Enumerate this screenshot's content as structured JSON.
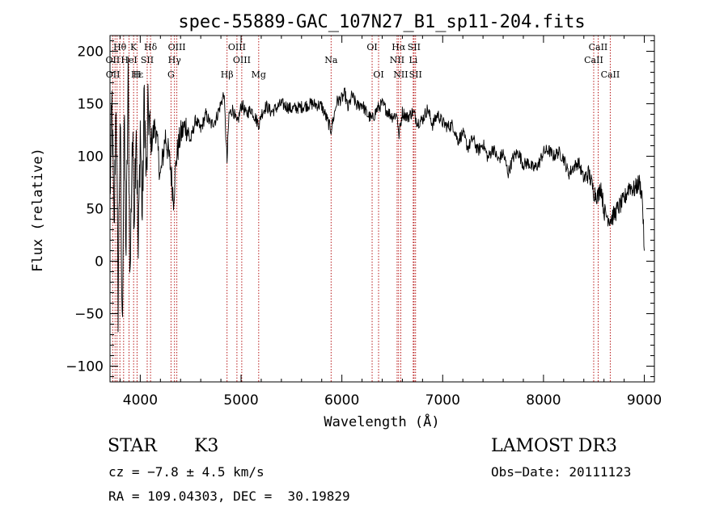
{
  "chart_data": {
    "type": "line",
    "title": "spec-55889-GAC_107N27_B1_sp11-204.fits",
    "xlabel": "Wavelength (Å)",
    "ylabel": "Flux (relative)",
    "xlim": [
      3700,
      9100
    ],
    "ylim": [
      -115,
      215
    ],
    "xticks": [
      4000,
      5000,
      6000,
      7000,
      8000,
      9000
    ],
    "yticks": [
      -100,
      -50,
      0,
      50,
      100,
      150,
      200
    ],
    "grid": false,
    "series": [
      {
        "name": "spectrum",
        "x": [
          3700,
          3720,
          3740,
          3760,
          3780,
          3800,
          3820,
          3840,
          3860,
          3880,
          3900,
          3920,
          3940,
          3960,
          3980,
          4000,
          4020,
          4040,
          4060,
          4080,
          4100,
          4150,
          4200,
          4250,
          4300,
          4330,
          4360,
          4400,
          4450,
          4500,
          4550,
          4600,
          4650,
          4700,
          4750,
          4800,
          4830,
          4861,
          4880,
          4920,
          4960,
          5007,
          5050,
          5100,
          5150,
          5180,
          5200,
          5250,
          5300,
          5400,
          5500,
          5600,
          5700,
          5800,
          5893,
          5950,
          6000,
          6030,
          6060,
          6100,
          6150,
          6200,
          6250,
          6300,
          6350,
          6400,
          6450,
          6500,
          6550,
          6563,
          6600,
          6650,
          6700,
          6720,
          6750,
          6800,
          6850,
          6900,
          6950,
          7000,
          7050,
          7100,
          7150,
          7200,
          7250,
          7300,
          7350,
          7400,
          7450,
          7500,
          7550,
          7600,
          7650,
          7700,
          7750,
          7800,
          7850,
          7900,
          7950,
          8000,
          8050,
          8100,
          8150,
          8200,
          8250,
          8300,
          8350,
          8400,
          8450,
          8498,
          8542,
          8570,
          8600,
          8620,
          8662,
          8700,
          8750,
          8800,
          8850,
          8900,
          8950,
          8980,
          9000
        ],
        "y": [
          60,
          150,
          20,
          160,
          -40,
          140,
          -70,
          130,
          10,
          170,
          -20,
          120,
          50,
          140,
          0,
          130,
          40,
          160,
          70,
          150,
          110,
          130,
          80,
          120,
          90,
          60,
          100,
          120,
          130,
          115,
          135,
          125,
          140,
          130,
          135,
          150,
          160,
          95,
          140,
          145,
          130,
          150,
          140,
          145,
          135,
          130,
          140,
          148,
          142,
          150,
          145,
          147,
          150,
          148,
          125,
          152,
          155,
          160,
          145,
          158,
          148,
          150,
          140,
          135,
          145,
          150,
          143,
          138,
          140,
          118,
          142,
          137,
          142,
          140,
          132,
          135,
          145,
          130,
          140,
          132,
          128,
          130,
          115,
          122,
          108,
          117,
          105,
          112,
          98,
          108,
          96,
          103,
          84,
          99,
          104,
          92,
          94,
          88,
          92,
          104,
          106,
          100,
          104,
          98,
          83,
          90,
          94,
          78,
          84,
          66,
          62,
          72,
          48,
          44,
          40,
          44,
          52,
          58,
          72,
          68,
          75,
          62,
          10
        ]
      }
    ],
    "line_labels": [
      {
        "label": "Hβ",
        "wavelength": 4861,
        "row": 3
      },
      {
        "label": "OIII",
        "wavelength": 4959,
        "row": 1
      },
      {
        "label": "OIII",
        "wavelength": 5007,
        "row": 2
      },
      {
        "label": "Mg",
        "wavelength": 5175,
        "row": 3
      },
      {
        "label": "Na",
        "wavelength": 5893,
        "row": 2
      },
      {
        "label": "OI",
        "wavelength": 6300,
        "row": 1
      },
      {
        "label": "OI",
        "wavelength": 6364,
        "row": 3
      },
      {
        "label": "Hα",
        "wavelength": 6563,
        "row": 1
      },
      {
        "label": "NII",
        "wavelength": 6548,
        "row": 2
      },
      {
        "label": "NII",
        "wavelength": 6584,
        "row": 3
      },
      {
        "label": "SII",
        "wavelength": 6716,
        "row": 1
      },
      {
        "label": "Li",
        "wavelength": 6708,
        "row": 2
      },
      {
        "label": "SII",
        "wavelength": 6731,
        "row": 3
      },
      {
        "label": "CaII",
        "wavelength": 8542,
        "row": 1
      },
      {
        "label": "CaII",
        "wavelength": 8498,
        "row": 2
      },
      {
        "label": "CaII",
        "wavelength": 8662,
        "row": 3
      },
      {
        "label": "Hδ",
        "wavelength": 4102,
        "row": 1
      },
      {
        "label": "OIII",
        "wavelength": 4363,
        "row": 1
      },
      {
        "label": "Hγ",
        "wavelength": 4340,
        "row": 2
      },
      {
        "label": "G",
        "wavelength": 4305,
        "row": 3
      },
      {
        "label": "SII",
        "wavelength": 4069,
        "row": 2
      },
      {
        "label": "H",
        "wavelength": 3968,
        "row": 3
      },
      {
        "label": "K",
        "wavelength": 3934,
        "row": 1
      },
      {
        "label": "HeI",
        "wavelength": 3889,
        "row": 2
      },
      {
        "label": "Hε",
        "wavelength": 3970,
        "row": 3
      },
      {
        "label": "Hθ",
        "wavelength": 3798,
        "row": 1
      },
      {
        "label": "OII",
        "wavelength": 3727,
        "row": 2
      },
      {
        "label": "OII",
        "wavelength": 3729,
        "row": 3
      }
    ],
    "line_marker_wavelengths": [
      3727,
      3750,
      3770,
      3798,
      3835,
      3889,
      3934,
      3968,
      4069,
      4102,
      4305,
      4340,
      4363,
      4861,
      4959,
      5007,
      5175,
      5893,
      6300,
      6364,
      6548,
      6563,
      6584,
      6708,
      6716,
      6731,
      8498,
      8542,
      8662
    ]
  },
  "info": {
    "object_class": "STAR",
    "subclass": "K3",
    "survey": "LAMOST DR3",
    "redshift_line": "cz = −7.8 ± 4.5 km/s",
    "obs_date_line": "Obs−Date: 20111123",
    "coords_line": "RA = 109.04303, DEC =  30.19829"
  }
}
